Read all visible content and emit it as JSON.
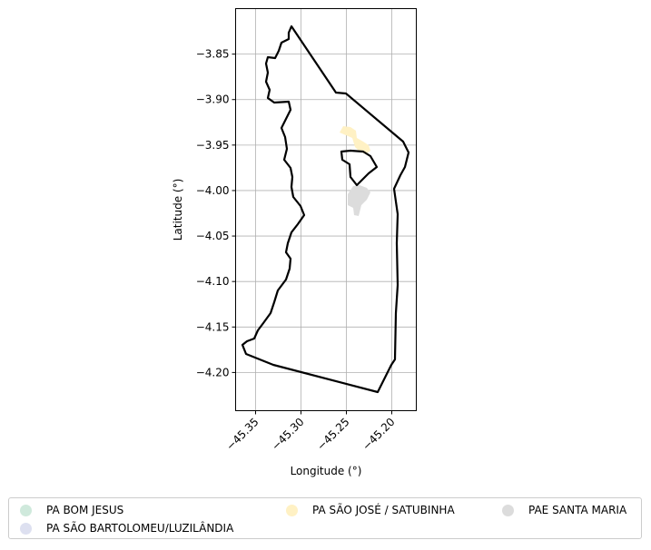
{
  "map": {
    "xlabel": "Longitude (°)",
    "ylabel": "Latitude (°)",
    "xticks": [
      "−45.35",
      "−45.30",
      "−45.25",
      "−45.20"
    ],
    "xtick_values": [
      -45.35,
      -45.3,
      -45.25,
      -45.2
    ],
    "yticks": [
      "−3.85",
      "−3.90",
      "−3.95",
      "−4.00",
      "−4.05",
      "−4.10",
      "−4.15",
      "−4.20"
    ],
    "ytick_values": [
      -3.85,
      -3.9,
      -3.95,
      -4.0,
      -4.05,
      -4.1,
      -4.15,
      -4.2
    ],
    "xlim": [
      -45.372,
      -45.173
    ],
    "ylim": [
      -4.242,
      -3.8
    ],
    "grid": true,
    "boundary_color": "#000000"
  },
  "legend": {
    "items": [
      {
        "label": "PA BOM JESUS",
        "color": "#cfe9dc"
      },
      {
        "label": "PA SÃO BARTOLOMEU/LUZILÂNDIA",
        "color": "#dde0f0"
      },
      {
        "label": "PA SÃO JOSÉ / SATUBINHA",
        "color": "#fff1c4"
      },
      {
        "label": "PAE SANTA MARIA",
        "color": "#dcdcdc"
      }
    ]
  }
}
